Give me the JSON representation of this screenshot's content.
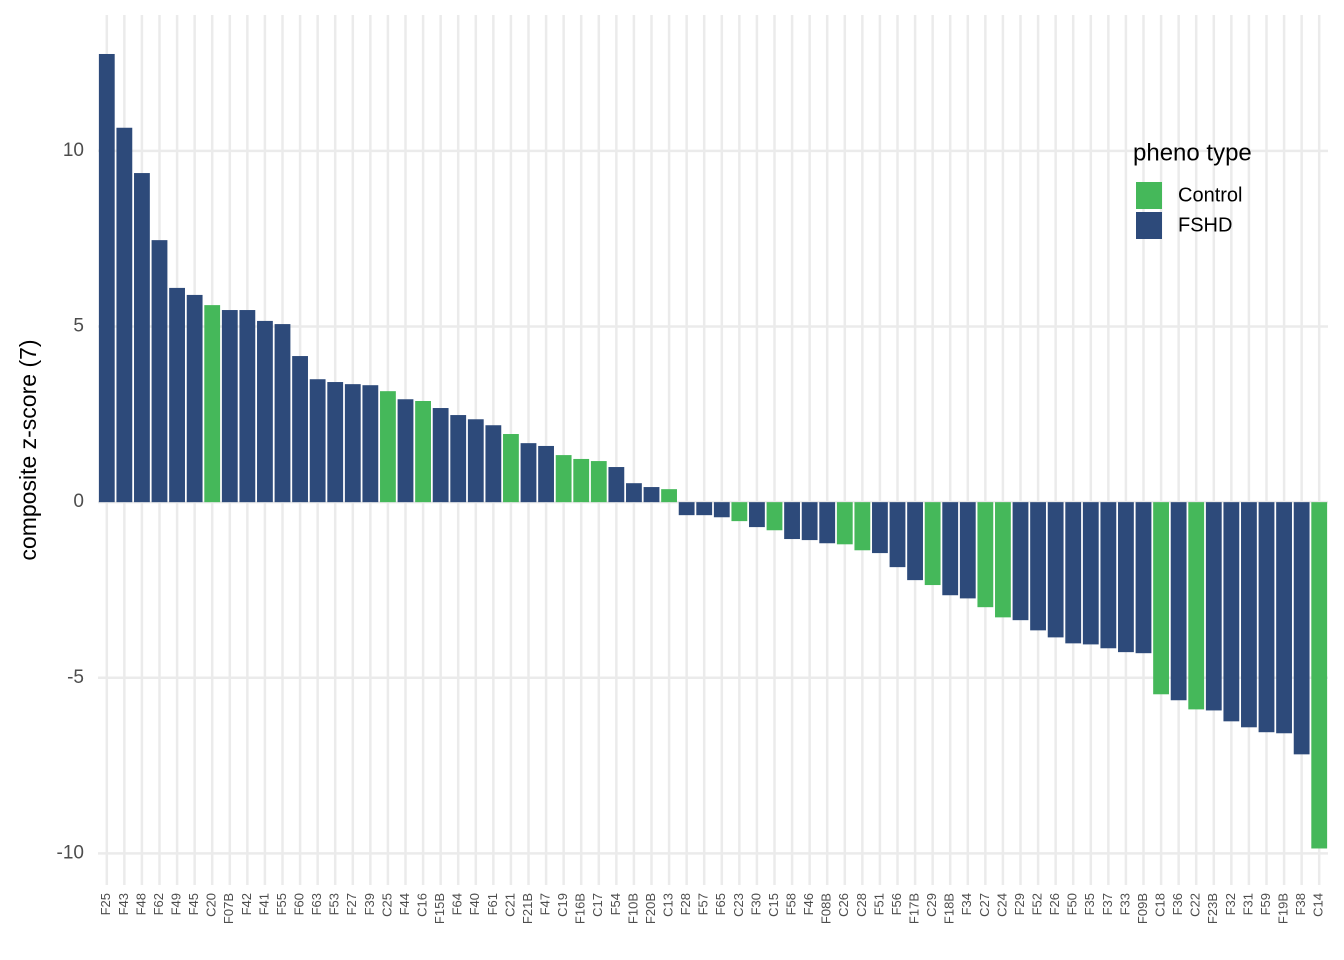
{
  "chart_data": {
    "type": "bar",
    "y_label": "composite z-score (7)",
    "legend_title": "pheno type",
    "legend_position": "top-right",
    "grid": true,
    "ylim": [
      -10.9,
      13.87
    ],
    "yticks": [
      -10,
      -5,
      0,
      5,
      10
    ],
    "categories": [
      "F25",
      "F43",
      "F48",
      "F62",
      "F49",
      "F45",
      "C20",
      "F07B",
      "F42",
      "F41",
      "F55",
      "F60",
      "F63",
      "F53",
      "F27",
      "F39",
      "C25",
      "F44",
      "C16",
      "F15B",
      "F64",
      "F40",
      "F61",
      "C21",
      "F21B",
      "F47",
      "C19",
      "F16B",
      "C17",
      "F54",
      "F10B",
      "F20B",
      "C13",
      "F28",
      "F57",
      "F65",
      "C23",
      "F30",
      "C15",
      "F58",
      "F46",
      "F08B",
      "C26",
      "C28",
      "F51",
      "F56",
      "F17B",
      "C29",
      "F18B",
      "F34",
      "C27",
      "C24",
      "F29",
      "F52",
      "F26",
      "F50",
      "F35",
      "F37",
      "F33",
      "F09B",
      "C18",
      "F36",
      "C22",
      "F23B",
      "F32",
      "F31",
      "F59",
      "F19B",
      "F38",
      "C14"
    ],
    "series": [
      {
        "name": "Control",
        "color": "#45b85a",
        "values": [
          null,
          null,
          null,
          null,
          null,
          null,
          5.61,
          null,
          null,
          null,
          null,
          null,
          null,
          null,
          null,
          null,
          3.16,
          null,
          2.88,
          null,
          null,
          null,
          null,
          1.94,
          null,
          null,
          1.34,
          1.23,
          1.17,
          null,
          null,
          null,
          0.37,
          null,
          null,
          null,
          -0.54,
          null,
          -0.8,
          null,
          null,
          null,
          -1.2,
          -1.37,
          null,
          null,
          null,
          -2.36,
          null,
          null,
          -2.99,
          -3.28,
          null,
          null,
          null,
          null,
          null,
          null,
          null,
          null,
          -5.47,
          null,
          -5.9,
          null,
          null,
          null,
          null,
          null,
          null,
          -9.86
        ]
      },
      {
        "name": "FSHD",
        "color": "#2d4a7a",
        "values": [
          12.76,
          10.66,
          9.37,
          7.46,
          6.1,
          5.9,
          null,
          5.47,
          5.47,
          5.16,
          5.07,
          4.16,
          3.5,
          3.42,
          3.36,
          3.33,
          null,
          2.93,
          null,
          2.68,
          2.48,
          2.36,
          2.19,
          null,
          1.68,
          1.6,
          null,
          null,
          null,
          1.0,
          0.54,
          0.43,
          null,
          -0.37,
          -0.37,
          -0.43,
          null,
          -0.71,
          null,
          -1.05,
          -1.08,
          -1.17,
          null,
          null,
          -1.45,
          -1.85,
          -2.22,
          null,
          -2.65,
          -2.74,
          null,
          null,
          -3.36,
          -3.65,
          -3.85,
          -4.02,
          -4.05,
          -4.16,
          -4.27,
          -4.3,
          null,
          -5.64,
          null,
          -5.93,
          -6.24,
          -6.41,
          -6.55,
          -6.58,
          -7.18,
          null
        ]
      }
    ]
  }
}
